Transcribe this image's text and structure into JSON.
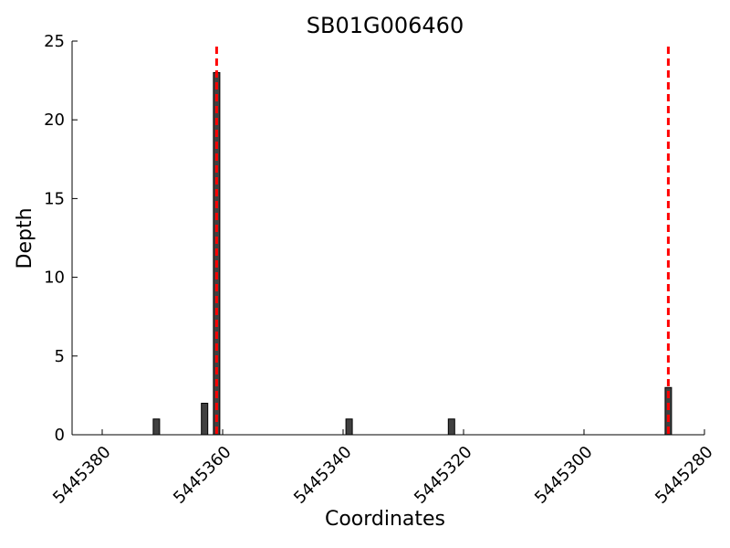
{
  "chart_data": {
    "type": "bar",
    "title": "SB01G006460",
    "xlabel": "Coordinates",
    "ylabel": "Depth",
    "x_reversed": true,
    "xlim": [
      5445385,
      5445280
    ],
    "ylim": [
      0,
      25
    ],
    "xticks": [
      5445380,
      5445360,
      5445340,
      5445320,
      5445300,
      5445280
    ],
    "yticks": [
      0,
      5,
      10,
      15,
      20,
      25
    ],
    "bar_color": "#404040",
    "bar_edge_color": "#000000",
    "bars": [
      {
        "x": 5445371,
        "depth": 1
      },
      {
        "x": 5445363,
        "depth": 2
      },
      {
        "x": 5445361,
        "depth": 23
      },
      {
        "x": 5445339,
        "depth": 1
      },
      {
        "x": 5445322,
        "depth": 1
      },
      {
        "x": 5445286,
        "depth": 3
      }
    ],
    "markers": [
      5445361,
      5445286
    ],
    "marker_color": "#ff0000",
    "marker_style": "dashed"
  }
}
